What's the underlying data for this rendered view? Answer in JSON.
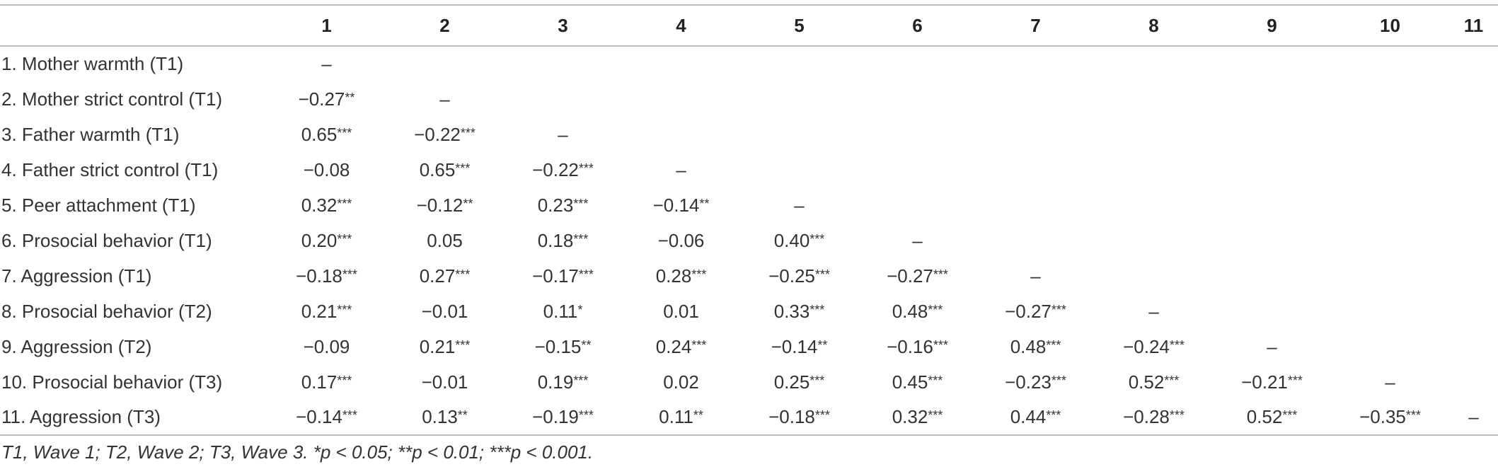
{
  "table": {
    "header": [
      "1",
      "2",
      "3",
      "4",
      "5",
      "6",
      "7",
      "8",
      "9",
      "10",
      "11"
    ],
    "rows": [
      {
        "label": "1. Mother warmth (T1)",
        "cells": [
          {
            "value": "–"
          }
        ]
      },
      {
        "label": "2. Mother strict control (T1)",
        "cells": [
          {
            "value": "−0.27",
            "sig": "**"
          },
          {
            "value": "–"
          }
        ]
      },
      {
        "label": "3. Father warmth (T1)",
        "cells": [
          {
            "value": "0.65",
            "sig": "***"
          },
          {
            "value": "−0.22",
            "sig": "***"
          },
          {
            "value": "–"
          }
        ]
      },
      {
        "label": "4. Father strict control (T1)",
        "cells": [
          {
            "value": "−0.08"
          },
          {
            "value": "0.65",
            "sig": "***"
          },
          {
            "value": "−0.22",
            "sig": "***"
          },
          {
            "value": "–"
          }
        ]
      },
      {
        "label": "5. Peer attachment (T1)",
        "cells": [
          {
            "value": "0.32",
            "sig": "***"
          },
          {
            "value": "−0.12",
            "sig": "**"
          },
          {
            "value": "0.23",
            "sig": "***"
          },
          {
            "value": "−0.14",
            "sig": "**"
          },
          {
            "value": "–"
          }
        ]
      },
      {
        "label": "6. Prosocial behavior (T1)",
        "cells": [
          {
            "value": "0.20",
            "sig": "***"
          },
          {
            "value": "0.05"
          },
          {
            "value": "0.18",
            "sig": "***"
          },
          {
            "value": "−0.06"
          },
          {
            "value": "0.40",
            "sig": "***"
          },
          {
            "value": "–"
          }
        ]
      },
      {
        "label": "7. Aggression (T1)",
        "cells": [
          {
            "value": "−0.18",
            "sig": "***"
          },
          {
            "value": "0.27",
            "sig": "***"
          },
          {
            "value": "−0.17",
            "sig": "***"
          },
          {
            "value": "0.28",
            "sig": "***"
          },
          {
            "value": "−0.25",
            "sig": "***"
          },
          {
            "value": "−0.27",
            "sig": "***"
          },
          {
            "value": "–"
          }
        ]
      },
      {
        "label": "8. Prosocial behavior (T2)",
        "cells": [
          {
            "value": "0.21",
            "sig": "***"
          },
          {
            "value": "−0.01"
          },
          {
            "value": "0.11",
            "sig": "*"
          },
          {
            "value": "0.01"
          },
          {
            "value": "0.33",
            "sig": "***"
          },
          {
            "value": "0.48",
            "sig": "***"
          },
          {
            "value": "−0.27",
            "sig": "***"
          },
          {
            "value": "–"
          }
        ]
      },
      {
        "label": "9. Aggression (T2)",
        "cells": [
          {
            "value": "−0.09"
          },
          {
            "value": "0.21",
            "sig": "***"
          },
          {
            "value": "−0.15",
            "sig": "**"
          },
          {
            "value": "0.24",
            "sig": "***"
          },
          {
            "value": "−0.14",
            "sig": "**"
          },
          {
            "value": "−0.16",
            "sig": "***"
          },
          {
            "value": "0.48",
            "sig": "***"
          },
          {
            "value": "−0.24",
            "sig": "***"
          },
          {
            "value": "–"
          }
        ]
      },
      {
        "label": "10. Prosocial behavior (T3)",
        "cells": [
          {
            "value": "0.17",
            "sig": "***"
          },
          {
            "value": "−0.01"
          },
          {
            "value": "0.19",
            "sig": "***"
          },
          {
            "value": "0.02"
          },
          {
            "value": "0.25",
            "sig": "***"
          },
          {
            "value": "0.45",
            "sig": "***"
          },
          {
            "value": "−0.23",
            "sig": "***"
          },
          {
            "value": "0.52",
            "sig": "***"
          },
          {
            "value": "−0.21",
            "sig": "***"
          },
          {
            "value": "–"
          }
        ]
      },
      {
        "label": "11. Aggression (T3)",
        "cells": [
          {
            "value": "−0.14",
            "sig": "***"
          },
          {
            "value": "0.13",
            "sig": "**"
          },
          {
            "value": "−0.19",
            "sig": "***"
          },
          {
            "value": "0.11",
            "sig": "**"
          },
          {
            "value": "−0.18",
            "sig": "***"
          },
          {
            "value": "0.32",
            "sig": "***"
          },
          {
            "value": "0.44",
            "sig": "***"
          },
          {
            "value": "−0.28",
            "sig": "***"
          },
          {
            "value": "0.52",
            "sig": "***"
          },
          {
            "value": "−0.35",
            "sig": "***"
          },
          {
            "value": "–"
          }
        ]
      }
    ],
    "footnote": "T1, Wave 1; T2, Wave 2; T3, Wave 3. *p < 0.05; **p < 0.01; ***p < 0.001."
  }
}
